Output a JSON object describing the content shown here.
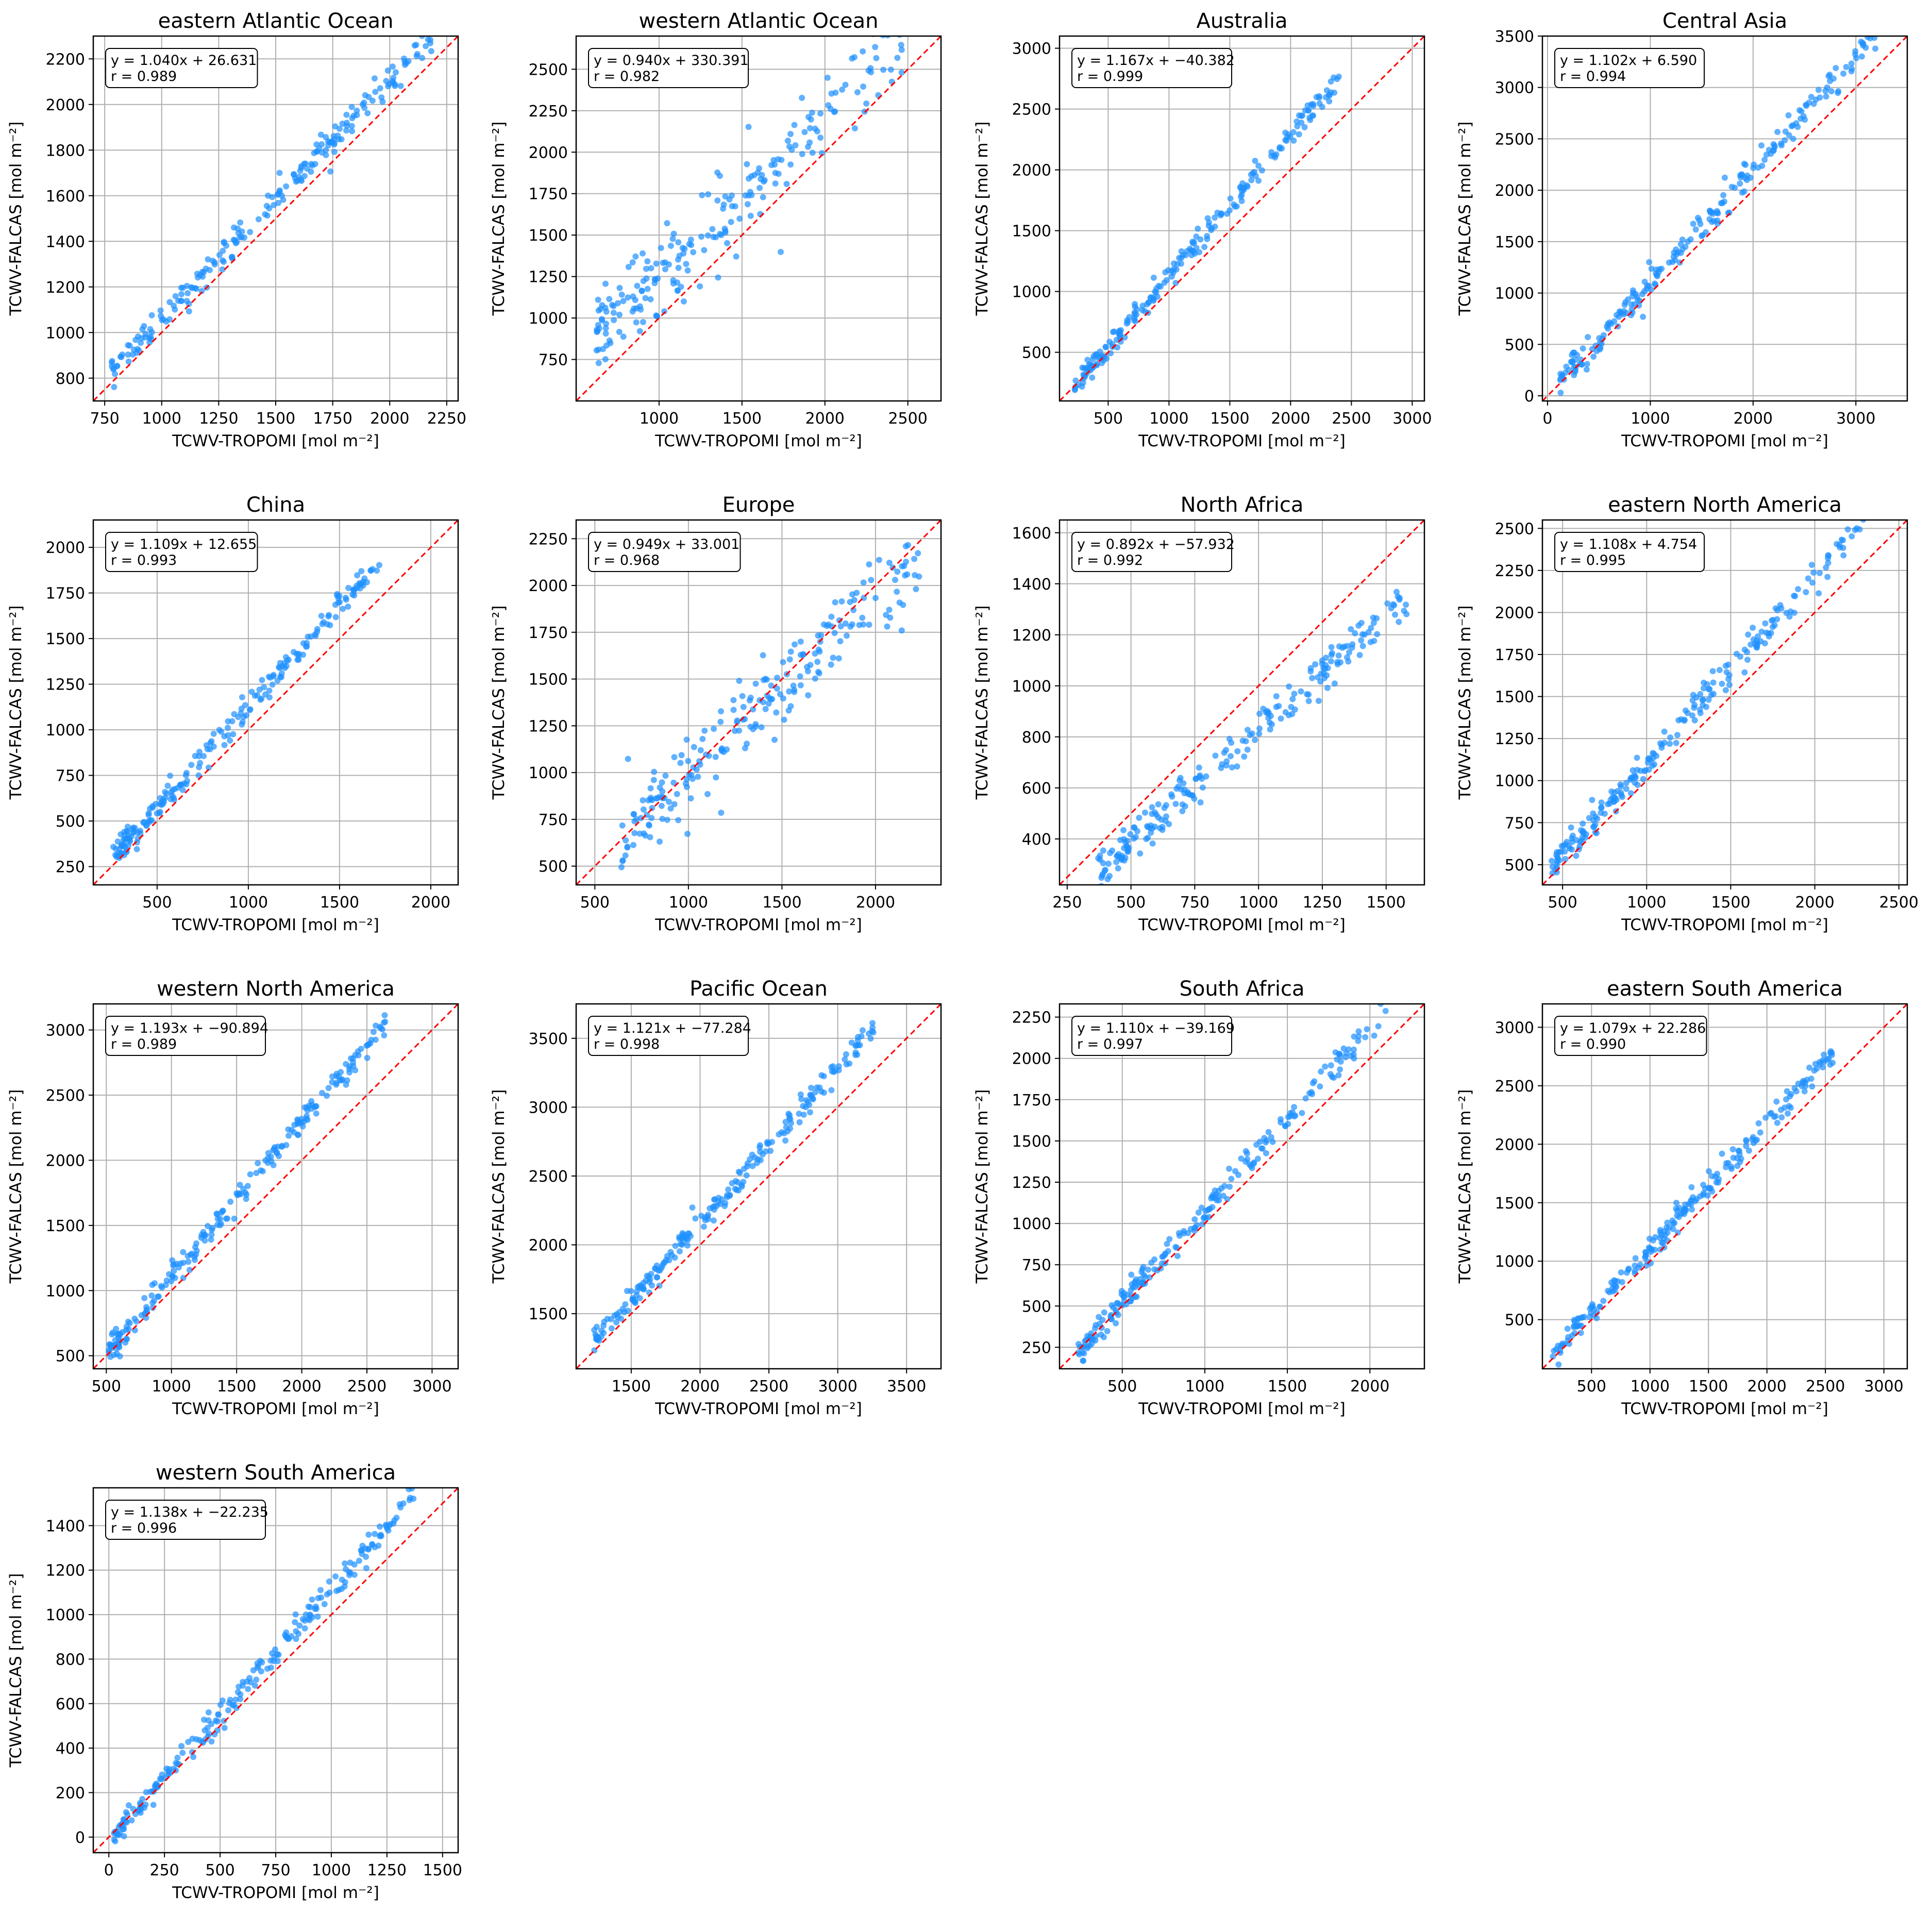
{
  "figure": {
    "colors": {
      "points": "#1e90ff",
      "identity_line": "#ff0000",
      "grid": "#b0b0b0"
    },
    "marker_note": "circle"
  },
  "chart_data": [
    {
      "type": "scatter",
      "title": "eastern Atlantic Ocean",
      "xlabel": "TCWV-TROPOMI [mol m⁻²]",
      "ylabel": "TCWV-FALCAS [mol m⁻²]",
      "xlim": [
        700,
        2300
      ],
      "ylim": [
        700,
        2300
      ],
      "xticks": [
        750,
        1000,
        1250,
        1500,
        1750,
        2000,
        2250
      ],
      "yticks": [
        800,
        1000,
        1200,
        1400,
        1600,
        1800,
        2000,
        2200
      ],
      "annotation": {
        "fit": "y = 1.040x + 26.631",
        "r": "r = 0.989"
      },
      "fit": {
        "slope": 1.04,
        "intercept": 26.631
      },
      "identity_line": true,
      "grid": true,
      "x_data_range": [
        780,
        2240
      ]
    },
    {
      "type": "scatter",
      "title": "western Atlantic Ocean",
      "xlabel": "TCWV-TROPOMI [mol m⁻²]",
      "ylabel": "TCWV-FALCAS [mol m⁻²]",
      "xlim": [
        500,
        2700
      ],
      "ylim": [
        500,
        2700
      ],
      "xticks": [
        1000,
        1500,
        2000,
        2500
      ],
      "yticks": [
        750,
        1000,
        1250,
        1500,
        1750,
        2000,
        2250,
        2500
      ],
      "annotation": {
        "fit": "y = 0.940x + 330.391",
        "r": "r = 0.982"
      },
      "fit": {
        "slope": 0.94,
        "intercept": 330.391
      },
      "identity_line": true,
      "grid": true,
      "x_data_range": [
        620,
        2480
      ]
    },
    {
      "type": "scatter",
      "title": "Australia",
      "xlabel": "TCWV-TROPOMI [mol m⁻²]",
      "ylabel": "TCWV-FALCAS [mol m⁻²]",
      "xlim": [
        100,
        3100
      ],
      "ylim": [
        100,
        3100
      ],
      "xticks": [
        500,
        1000,
        1500,
        2000,
        2500,
        3000
      ],
      "yticks": [
        500,
        1000,
        1500,
        2000,
        2500,
        3000
      ],
      "annotation": {
        "fit": "y = 1.167x + −40.382",
        "r": "r = 0.999"
      },
      "fit": {
        "slope": 1.167,
        "intercept": -40.382
      },
      "identity_line": true,
      "grid": true,
      "x_data_range": [
        220,
        2400
      ]
    },
    {
      "type": "scatter",
      "title": "Central Asia",
      "xlabel": "TCWV-TROPOMI [mol m⁻²]",
      "ylabel": "TCWV-FALCAS [mol m⁻²]",
      "xlim": [
        -50,
        3500
      ],
      "ylim": [
        -50,
        3500
      ],
      "xticks": [
        0,
        1000,
        2000,
        3000
      ],
      "yticks": [
        0,
        500,
        1000,
        1500,
        2000,
        2500,
        3000,
        3500
      ],
      "annotation": {
        "fit": "y = 1.102x + 6.590",
        "r": "r = 0.994"
      },
      "fit": {
        "slope": 1.102,
        "intercept": 6.59
      },
      "identity_line": true,
      "grid": true,
      "x_data_range": [
        120,
        3200
      ]
    },
    {
      "type": "scatter",
      "title": "China",
      "xlabel": "TCWV-TROPOMI [mol m⁻²]",
      "ylabel": "TCWV-FALCAS [mol m⁻²]",
      "xlim": [
        150,
        2150
      ],
      "ylim": [
        150,
        2150
      ],
      "xticks": [
        500,
        1000,
        1500,
        2000
      ],
      "yticks": [
        250,
        500,
        750,
        1000,
        1250,
        1500,
        1750,
        2000
      ],
      "annotation": {
        "fit": "y = 1.109x + 12.655",
        "r": "r = 0.993"
      },
      "fit": {
        "slope": 1.109,
        "intercept": 12.655
      },
      "identity_line": true,
      "grid": true,
      "x_data_range": [
        260,
        1750
      ]
    },
    {
      "type": "scatter",
      "title": "Europe",
      "xlabel": "TCWV-TROPOMI [mol m⁻²]",
      "ylabel": "TCWV-FALCAS [mol m⁻²]",
      "xlim": [
        400,
        2350
      ],
      "ylim": [
        400,
        2350
      ],
      "xticks": [
        500,
        1000,
        1500,
        2000
      ],
      "yticks": [
        500,
        750,
        1000,
        1250,
        1500,
        1750,
        2000,
        2250
      ],
      "annotation": {
        "fit": "y = 0.949x + 33.001",
        "r": "r = 0.968"
      },
      "fit": {
        "slope": 0.949,
        "intercept": 33.001
      },
      "identity_line": true,
      "grid": true,
      "x_data_range": [
        640,
        2250
      ]
    },
    {
      "type": "scatter",
      "title": "North Africa",
      "xlabel": "TCWV-TROPOMI [mol m⁻²]",
      "ylabel": "TCWV-FALCAS [mol m⁻²]",
      "xlim": [
        220,
        1650
      ],
      "ylim": [
        220,
        1650
      ],
      "xticks": [
        250,
        500,
        750,
        1000,
        1250,
        1500
      ],
      "yticks": [
        400,
        600,
        800,
        1000,
        1200,
        1400,
        1600
      ],
      "annotation": {
        "fit": "y = 0.892x + −57.932",
        "r": "r = 0.992"
      },
      "fit": {
        "slope": 0.892,
        "intercept": -57.932
      },
      "identity_line": true,
      "grid": true,
      "x_data_range": [
        370,
        1580
      ]
    },
    {
      "type": "scatter",
      "title": "eastern North America",
      "xlabel": "TCWV-TROPOMI [mol m⁻²]",
      "ylabel": "TCWV-FALCAS [mol m⁻²]",
      "xlim": [
        380,
        2550
      ],
      "ylim": [
        380,
        2550
      ],
      "xticks": [
        500,
        1000,
        1500,
        2000,
        2500
      ],
      "yticks": [
        500,
        750,
        1000,
        1250,
        1500,
        1750,
        2000,
        2250,
        2500
      ],
      "annotation": {
        "fit": "y = 1.108x + 4.754",
        "r": "r = 0.995"
      },
      "fit": {
        "slope": 1.108,
        "intercept": 4.754
      },
      "identity_line": true,
      "grid": true,
      "x_data_range": [
        430,
        2300
      ]
    },
    {
      "type": "scatter",
      "title": "western North America",
      "xlabel": "TCWV-TROPOMI [mol m⁻²]",
      "ylabel": "TCWV-FALCAS [mol m⁻²]",
      "xlim": [
        400,
        3200
      ],
      "ylim": [
        400,
        3200
      ],
      "xticks": [
        500,
        1000,
        1500,
        2000,
        2500,
        3000
      ],
      "yticks": [
        500,
        1000,
        1500,
        2000,
        2500,
        3000
      ],
      "annotation": {
        "fit": "y = 1.193x + −90.894",
        "r": "r = 0.989"
      },
      "fit": {
        "slope": 1.193,
        "intercept": -90.894
      },
      "identity_line": true,
      "grid": true,
      "x_data_range": [
        520,
        2650
      ]
    },
    {
      "type": "scatter",
      "title": "Pacific Ocean",
      "xlabel": "TCWV-TROPOMI [mol m⁻²]",
      "ylabel": "TCWV-FALCAS [mol m⁻²]",
      "xlim": [
        1100,
        3750
      ],
      "ylim": [
        1100,
        3750
      ],
      "xticks": [
        1500,
        2000,
        2500,
        3000,
        3500
      ],
      "yticks": [
        1500,
        2000,
        2500,
        3000,
        3500
      ],
      "annotation": {
        "fit": "y = 1.121x + −77.284",
        "r": "r = 0.998"
      },
      "fit": {
        "slope": 1.121,
        "intercept": -77.284
      },
      "identity_line": true,
      "grid": true,
      "x_data_range": [
        1230,
        3280
      ]
    },
    {
      "type": "scatter",
      "title": "South Africa",
      "xlabel": "TCWV-TROPOMI [mol m⁻²]",
      "ylabel": "TCWV-FALCAS [mol m⁻²]",
      "xlim": [
        120,
        2330
      ],
      "ylim": [
        120,
        2330
      ],
      "xticks": [
        500,
        1000,
        1500,
        2000
      ],
      "yticks": [
        250,
        500,
        750,
        1000,
        1250,
        1500,
        1750,
        2000,
        2250
      ],
      "annotation": {
        "fit": "y = 1.110x + −39.169",
        "r": "r = 0.997"
      },
      "fit": {
        "slope": 1.11,
        "intercept": -39.169
      },
      "identity_line": true,
      "grid": true,
      "x_data_range": [
        230,
        2100
      ]
    },
    {
      "type": "scatter",
      "title": "eastern South America",
      "xlabel": "TCWV-TROPOMI [mol m⁻²]",
      "ylabel": "TCWV-FALCAS [mol m⁻²]",
      "xlim": [
        80,
        3200
      ],
      "ylim": [
        80,
        3200
      ],
      "xticks": [
        500,
        1000,
        1500,
        2000,
        2500,
        3000
      ],
      "yticks": [
        500,
        1000,
        1500,
        2000,
        2500,
        3000
      ],
      "annotation": {
        "fit": "y = 1.079x + 22.286",
        "r": "r = 0.990"
      },
      "fit": {
        "slope": 1.079,
        "intercept": 22.286
      },
      "identity_line": true,
      "grid": true,
      "x_data_range": [
        160,
        2600
      ]
    },
    {
      "type": "scatter",
      "title": "western South America",
      "xlabel": "TCWV-TROPOMI [mol m⁻²]",
      "ylabel": "TCWV-FALCAS [mol m⁻²]",
      "xlim": [
        -70,
        1570
      ],
      "ylim": [
        -70,
        1570
      ],
      "xticks": [
        0,
        250,
        500,
        750,
        1000,
        1250,
        1500
      ],
      "yticks": [
        0,
        200,
        400,
        600,
        800,
        1000,
        1200,
        1400
      ],
      "annotation": {
        "fit": "y = 1.138x + −22.235",
        "r": "r = 0.996"
      },
      "fit": {
        "slope": 1.138,
        "intercept": -22.235
      },
      "identity_line": true,
      "grid": true,
      "x_data_range": [
        20,
        1370
      ]
    }
  ]
}
